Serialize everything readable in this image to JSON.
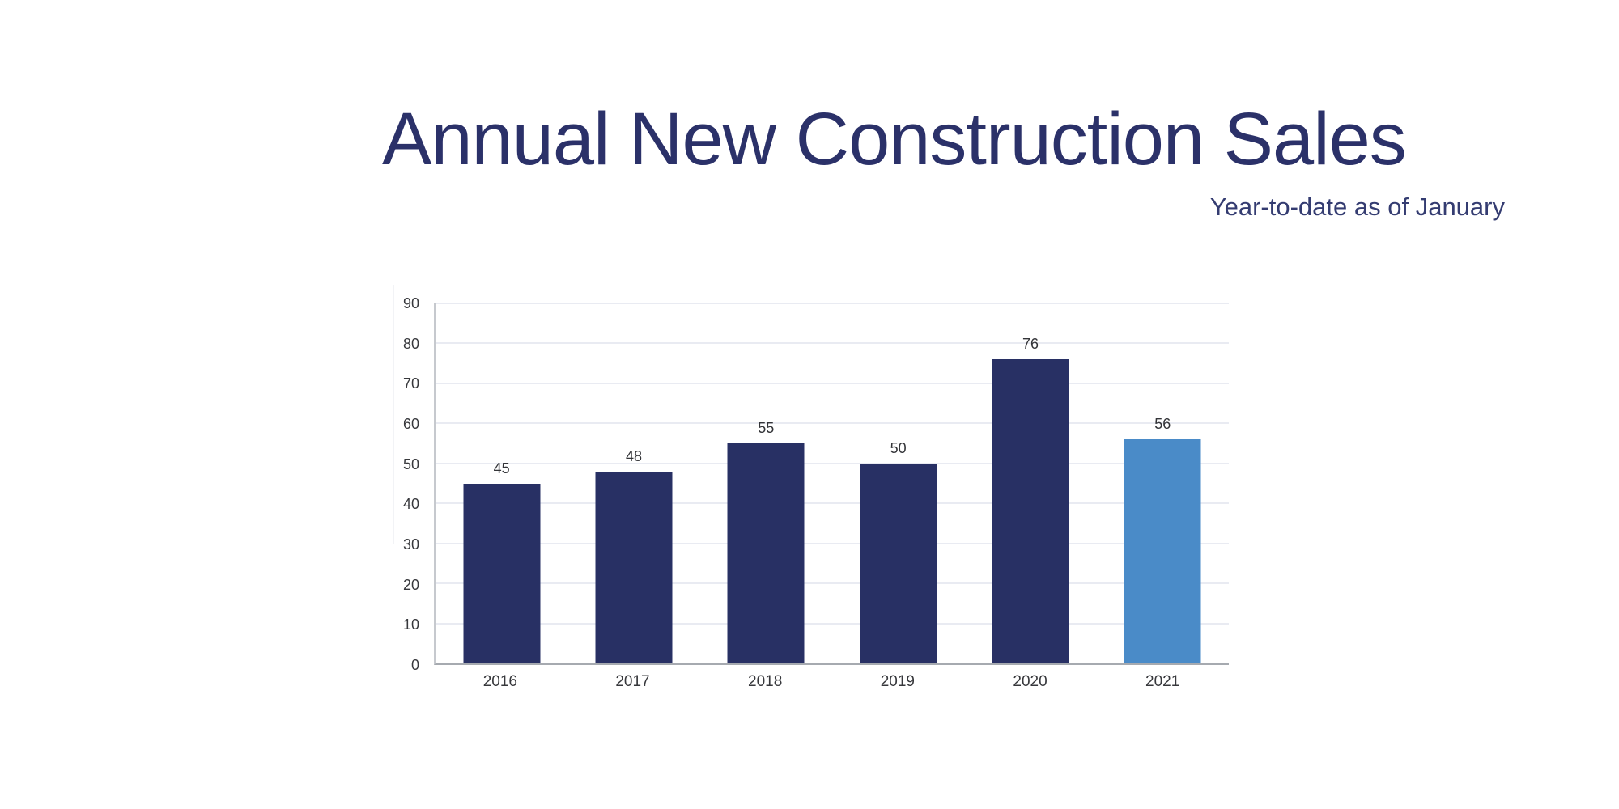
{
  "chart_data": {
    "type": "bar",
    "title": "Annual New Construction Sales",
    "subtitle": "Year-to-date as of January",
    "categories": [
      "2016",
      "2017",
      "2018",
      "2019",
      "2020",
      "2021"
    ],
    "values": [
      45,
      48,
      55,
      50,
      76,
      56
    ],
    "highlighted_category": "2021",
    "bar_colors": [
      "#283064",
      "#283064",
      "#283064",
      "#283064",
      "#283064",
      "#4a8bc8"
    ],
    "ylim": [
      0,
      90
    ],
    "yticks": [
      0,
      10,
      20,
      30,
      40,
      50,
      60,
      70,
      80,
      90
    ],
    "xlabel": "",
    "ylabel": "",
    "grid": true,
    "legend": "none",
    "value_labels_shown": true,
    "colors": {
      "bar_primary": "#283064",
      "bar_highlight": "#4a8bc8",
      "title_text": "#2b3169",
      "subtitle_text": "#343c71",
      "gridline": "#e9ebf2",
      "y_axis_line": "#c6c9ce",
      "x_baseline": "#a6aab0",
      "tick_label": "#37383c",
      "value_label": "#333438"
    }
  }
}
